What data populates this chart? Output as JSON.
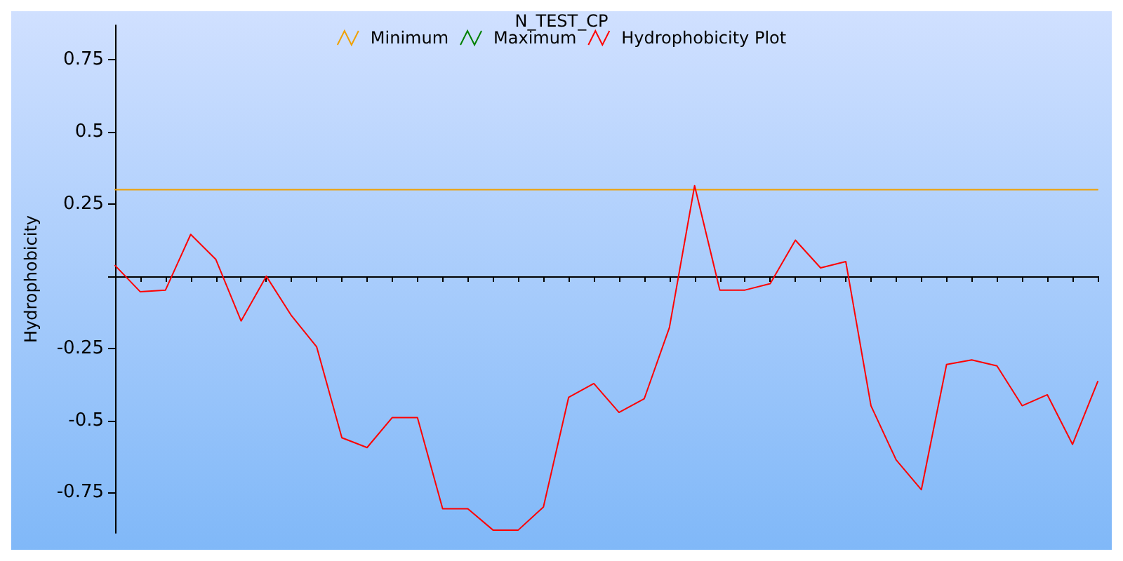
{
  "chart_data": {
    "type": "line",
    "title": "N_TEST_CP",
    "ylabel": "Hydrophobicity",
    "categories": [
      null,
      null,
      null,
      null,
      null,
      null,
      null,
      null,
      null,
      null,
      null,
      null,
      null,
      null,
      null,
      null,
      null,
      null,
      null,
      null,
      null,
      null,
      null,
      null,
      null,
      null,
      null,
      null,
      null,
      null,
      null,
      null,
      null,
      null,
      null,
      null,
      null,
      null,
      null,
      null
    ],
    "series": [
      {
        "name": "Minimum",
        "color": "#f0a000",
        "values": [
          0.3,
          0.3,
          0.3,
          0.3,
          0.3,
          0.3,
          0.3,
          0.3,
          0.3,
          0.3,
          0.3,
          0.3,
          0.3,
          0.3,
          0.3,
          0.3,
          0.3,
          0.3,
          0.3,
          0.3,
          0.3,
          0.3,
          0.3,
          0.3,
          0.3,
          0.3,
          0.3,
          0.3,
          0.3,
          0.3,
          0.3,
          0.3,
          0.3,
          0.3,
          0.3,
          0.3,
          0.3,
          0.3,
          0.3,
          0.3
        ]
      },
      {
        "name": "Maximum",
        "color": "#008000",
        "values": [
          null,
          null,
          null,
          null,
          null,
          null,
          null,
          null,
          null,
          null,
          null,
          null,
          null,
          null,
          null,
          null,
          null,
          null,
          null,
          null,
          null,
          null,
          null,
          null,
          null,
          null,
          null,
          null,
          null,
          null,
          null,
          null,
          null,
          null,
          null,
          null,
          null,
          null,
          null,
          null
        ]
      },
      {
        "name": "Hydrophobicity Plot",
        "color": "#ff0000",
        "values": [
          0.037,
          -0.054,
          -0.048,
          0.145,
          0.058,
          -0.155,
          0.0,
          -0.137,
          -0.245,
          -0.56,
          -0.594,
          -0.49,
          -0.49,
          -0.806,
          -0.806,
          -0.88,
          -0.88,
          -0.8,
          -0.42,
          -0.372,
          -0.472,
          -0.425,
          -0.178,
          0.314,
          -0.048,
          -0.048,
          -0.026,
          0.125,
          0.029,
          0.051,
          -0.449,
          -0.637,
          -0.74,
          -0.306,
          -0.29,
          -0.311,
          -0.449,
          -0.411,
          -0.583,
          -0.365
        ]
      }
    ],
    "ylim": [
      -0.89,
      0.87
    ],
    "yticks": [
      -0.75,
      -0.5,
      -0.25,
      {
        "value": 0,
        "label": null
      },
      0.25,
      0.5,
      0.75
    ],
    "tick_labels": "y",
    "legend": "top",
    "marker": "none",
    "line_style": "solid"
  }
}
